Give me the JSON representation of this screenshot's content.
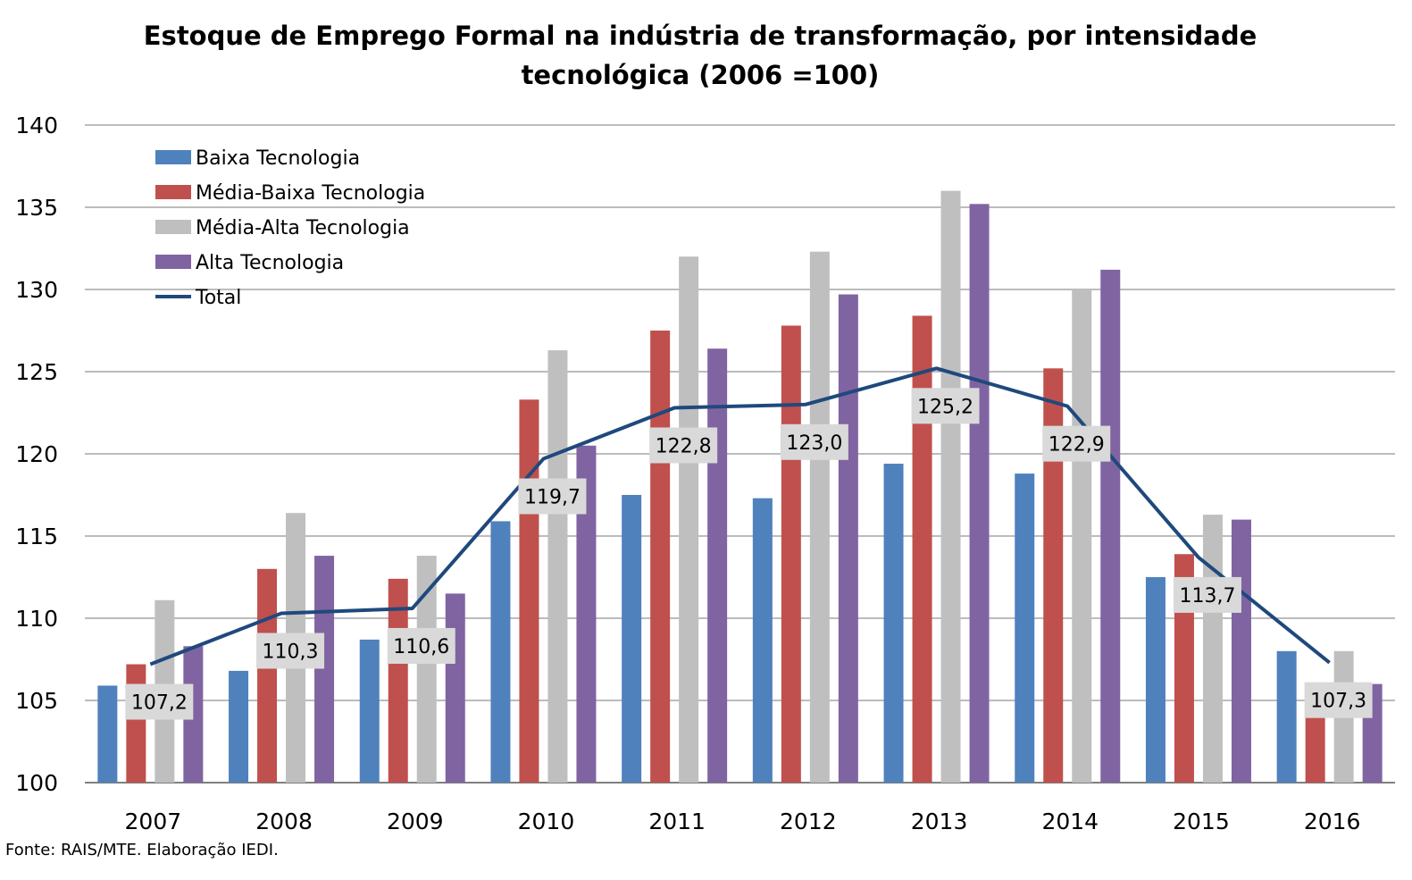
{
  "chart_data": {
    "type": "bar",
    "title": "Estoque de Emprego Formal na indústria de transformação, por intensidade\ntecnológica (2006 =100)",
    "xlabel": "",
    "ylabel": "",
    "ylim": [
      100,
      140
    ],
    "yticks": [
      100,
      105,
      110,
      115,
      120,
      125,
      130,
      135,
      140
    ],
    "grid": true,
    "legend_position": "top-left",
    "categories": [
      "2007",
      "2008",
      "2009",
      "2010",
      "2011",
      "2012",
      "2013",
      "2014",
      "2015",
      "2016"
    ],
    "series": [
      {
        "name": "Baixa Tecnologia",
        "kind": "bar",
        "color": "#4f81bd",
        "values": [
          105.9,
          106.8,
          108.7,
          115.9,
          117.5,
          117.3,
          119.4,
          118.8,
          112.5,
          108.0
        ]
      },
      {
        "name": "Média-Baixa Tecnologia",
        "kind": "bar",
        "color": "#c0504d",
        "values": [
          107.2,
          113.0,
          112.4,
          123.3,
          127.5,
          127.8,
          128.4,
          125.2,
          113.9,
          105.1
        ]
      },
      {
        "name": "Média-Alta Tecnologia",
        "kind": "bar",
        "color": "#bfbfbf",
        "values": [
          111.1,
          116.4,
          113.8,
          126.3,
          132.0,
          132.3,
          136.0,
          130.0,
          116.3,
          108.0
        ]
      },
      {
        "name": "Alta Tecnologia",
        "kind": "bar",
        "color": "#8064a2",
        "values": [
          108.3,
          113.8,
          111.5,
          120.5,
          126.4,
          129.7,
          135.2,
          131.2,
          116.0,
          106.0
        ]
      },
      {
        "name": "Total",
        "kind": "line",
        "color": "#1f497d",
        "values": [
          107.2,
          110.3,
          110.6,
          119.7,
          122.8,
          123.0,
          125.2,
          122.9,
          113.7,
          107.3
        ],
        "labels": [
          "107,2",
          "110,3",
          "110,6",
          "119,7",
          "122,8",
          "123,0",
          "125,2",
          "122,9",
          "113,7",
          "107,3"
        ]
      }
    ]
  },
  "source": "Fonte: RAIS/MTE. Elaboração IEDI."
}
